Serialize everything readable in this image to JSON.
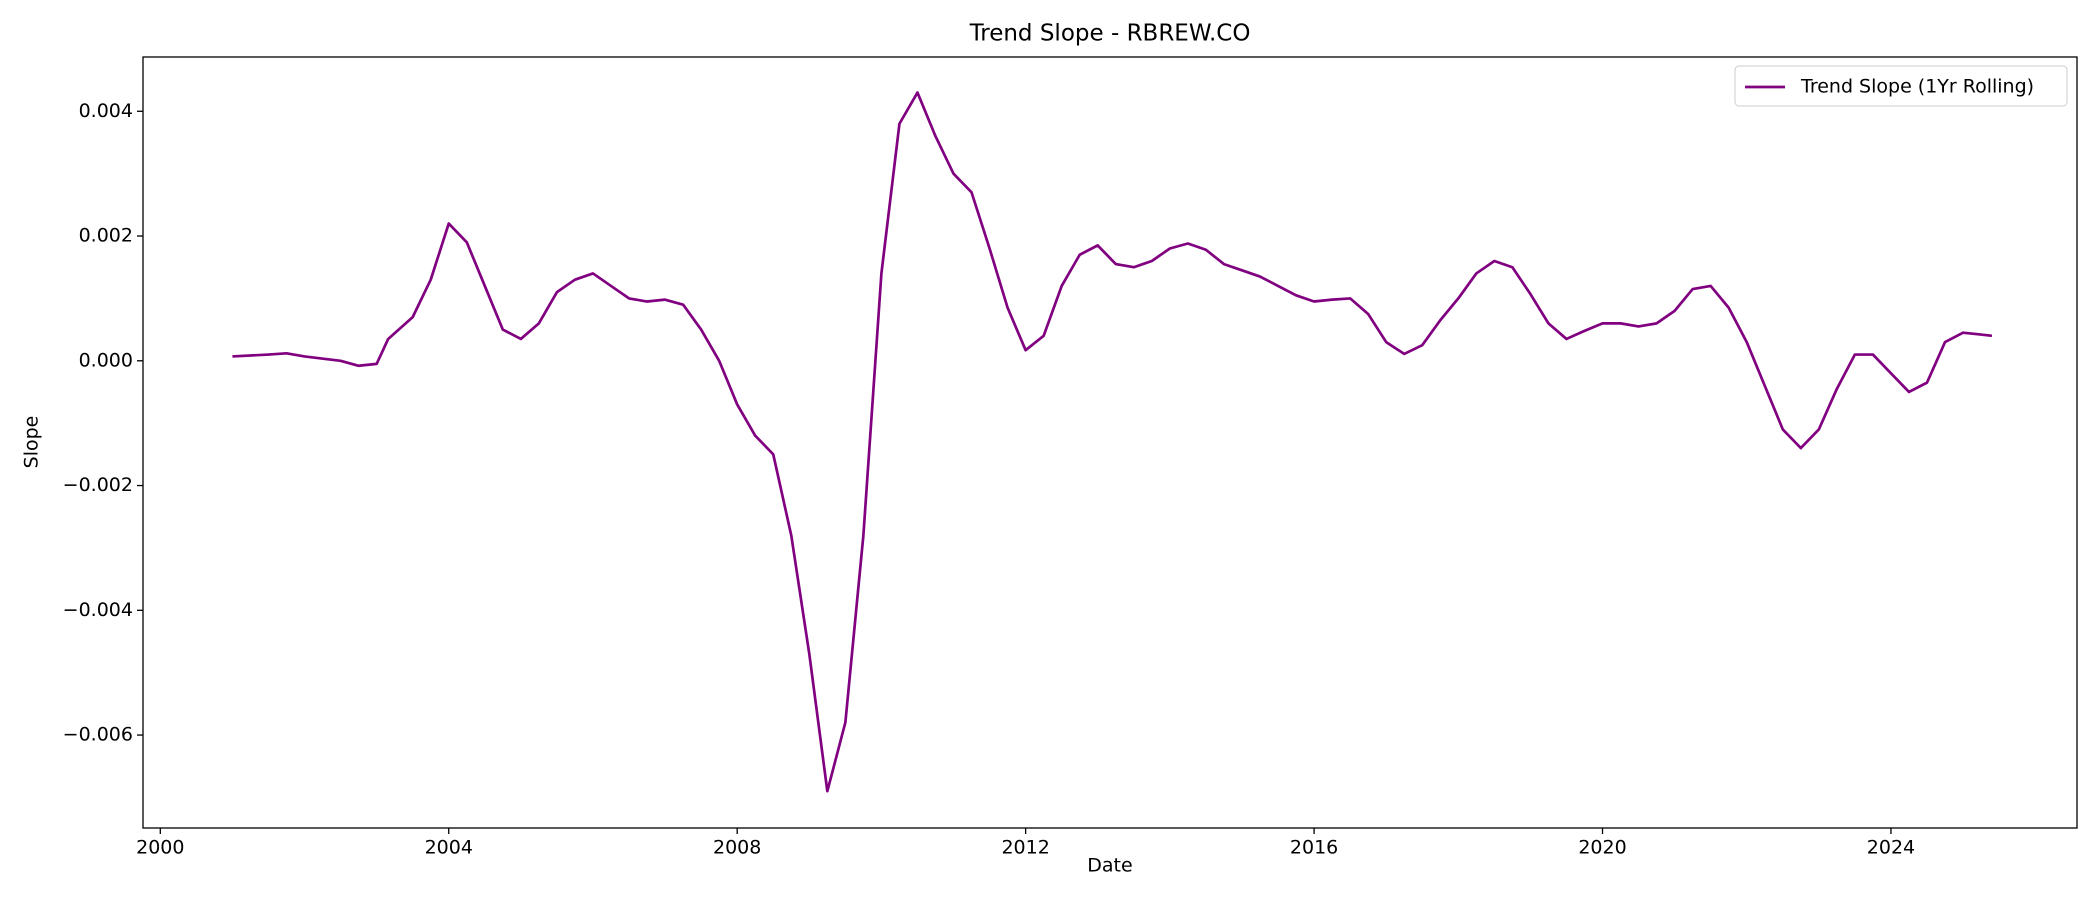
{
  "chart_data": {
    "type": "line",
    "title": "Trend Slope - RBREW.CO",
    "xlabel": "Date",
    "ylabel": "Slope",
    "x": [
      2001.0,
      2001.5,
      2001.75,
      2002.0,
      2002.5,
      2002.75,
      2003.0,
      2003.16,
      2003.5,
      2003.75,
      2004.0,
      2004.25,
      2004.5,
      2004.75,
      2005.0,
      2005.25,
      2005.5,
      2005.75,
      2006.0,
      2006.25,
      2006.5,
      2006.75,
      2007.0,
      2007.25,
      2007.5,
      2007.75,
      2008.0,
      2008.25,
      2008.5,
      2008.75,
      2009.0,
      2009.25,
      2009.5,
      2009.75,
      2010.0,
      2010.25,
      2010.5,
      2010.75,
      2011.0,
      2011.25,
      2011.5,
      2011.75,
      2012.0,
      2012.25,
      2012.5,
      2012.75,
      2013.0,
      2013.25,
      2013.5,
      2013.75,
      2014.0,
      2014.25,
      2014.5,
      2014.75,
      2015.0,
      2015.25,
      2015.5,
      2015.75,
      2016.0,
      2016.25,
      2016.5,
      2016.75,
      2017.0,
      2017.25,
      2017.5,
      2017.75,
      2018.0,
      2018.25,
      2018.5,
      2018.75,
      2019.0,
      2019.25,
      2019.5,
      2019.75,
      2020.0,
      2020.25,
      2020.5,
      2020.75,
      2021.0,
      2021.25,
      2021.5,
      2021.75,
      2022.0,
      2022.25,
      2022.5,
      2022.75,
      2023.0,
      2023.25,
      2023.5,
      2023.75,
      2024.0,
      2024.25,
      2024.5,
      2024.75,
      2025.0,
      2025.25,
      2025.4
    ],
    "series": [
      {
        "name": "Trend Slope (1Yr Rolling)",
        "color": "#800080",
        "values": [
          7e-05,
          0.0001,
          0.00012,
          7e-05,
          0.0,
          -8e-05,
          -5e-05,
          0.00035,
          0.0007,
          0.0013,
          0.0022,
          0.0019,
          0.0012,
          0.0005,
          0.00035,
          0.0006,
          0.0011,
          0.0013,
          0.0014,
          0.0012,
          0.001,
          0.00095,
          0.00098,
          0.0009,
          0.0005,
          0.0,
          -0.0007,
          -0.0012,
          -0.0015,
          -0.0028,
          -0.0047,
          -0.0069,
          -0.0058,
          -0.0028,
          0.0014,
          0.0038,
          0.0043,
          0.0036,
          0.003,
          0.0027,
          0.0018,
          0.00085,
          0.00017,
          0.0004,
          0.0012,
          0.0017,
          0.00185,
          0.00155,
          0.0015,
          0.0016,
          0.0018,
          0.00188,
          0.00178,
          0.00155,
          0.00145,
          0.00135,
          0.0012,
          0.00105,
          0.00095,
          0.00098,
          0.001,
          0.00075,
          0.0003,
          0.00011,
          0.00025,
          0.00065,
          0.001,
          0.0014,
          0.0016,
          0.0015,
          0.00107,
          0.0006,
          0.00035,
          0.00048,
          0.0006,
          0.0006,
          0.00055,
          0.0006,
          0.0008,
          0.00115,
          0.0012,
          0.00085,
          0.0003,
          -0.0004,
          -0.0011,
          -0.0014,
          -0.0011,
          -0.00045,
          0.0001,
          0.0001,
          -0.0002,
          -0.0005,
          -0.00035,
          0.0003,
          0.00045,
          0.00042,
          0.0004
        ]
      }
    ],
    "xlim": [
      1999.76,
      2026.58
    ],
    "xticks": [
      2000,
      2004,
      2008,
      2012,
      2016,
      2020,
      2024
    ],
    "ylim": [
      -0.00749,
      0.00487
    ],
    "yticks": [
      {
        "value": -0.006,
        "label": "−0.006"
      },
      {
        "value": -0.004,
        "label": "−0.004"
      },
      {
        "value": -0.002,
        "label": "−0.002"
      },
      {
        "value": 0,
        "label": "0.000"
      },
      0.002,
      0.004
    ],
    "legend": "upper right",
    "grid": false
  }
}
